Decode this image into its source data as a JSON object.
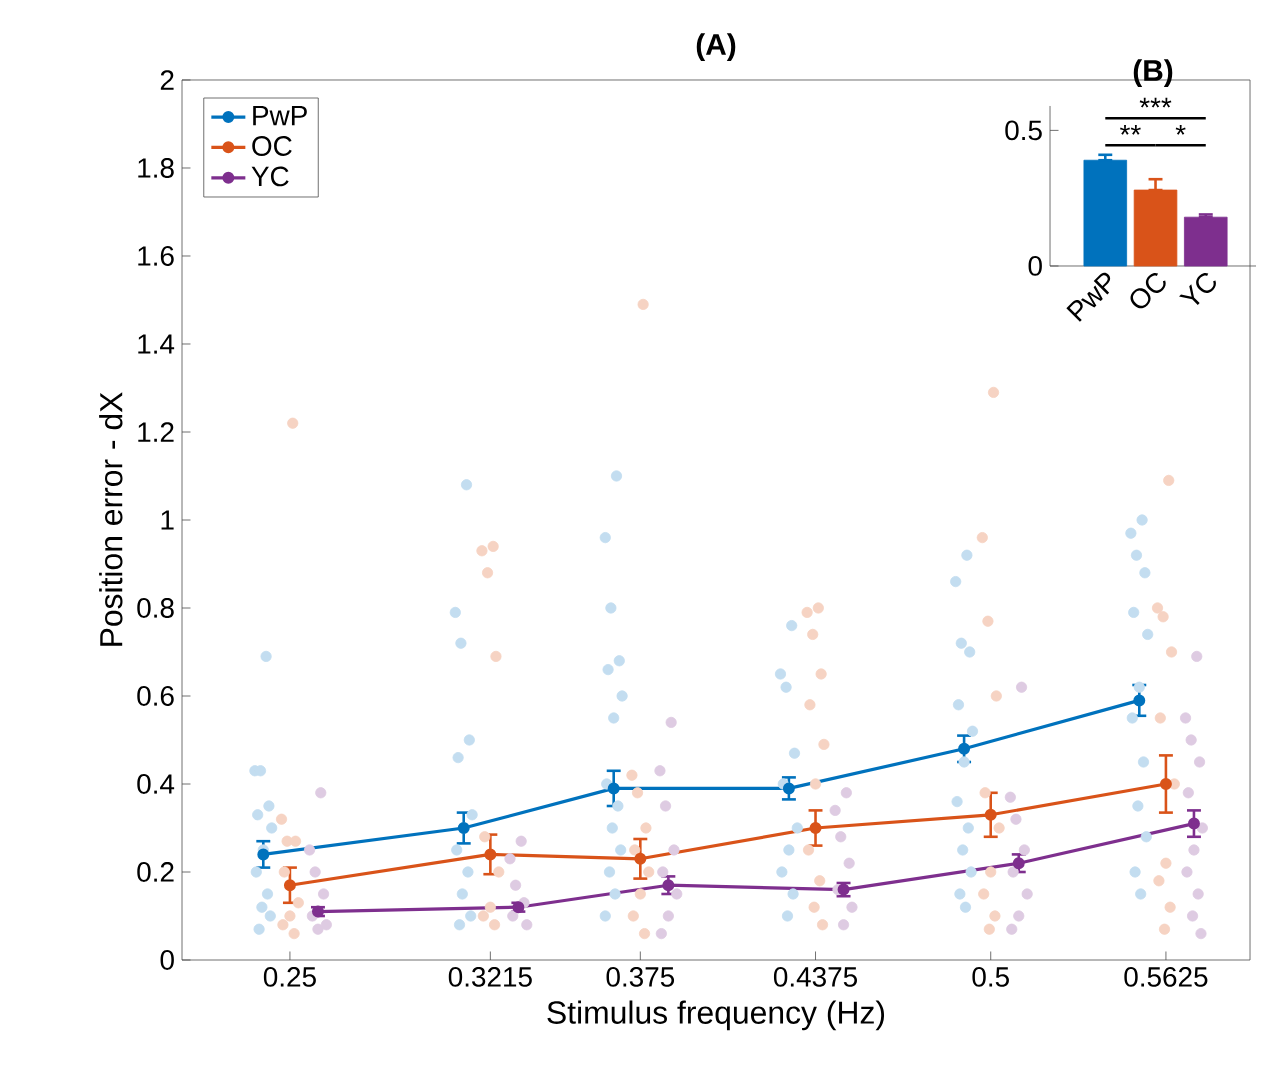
{
  "chart_data": [
    {
      "type": "line",
      "title": "(A)",
      "xlabel": "Stimulus frequency (Hz)",
      "ylabel": "Position error - dX",
      "xlim": [
        0.2115,
        0.5925
      ],
      "ylim": [
        0,
        2
      ],
      "xticks": [
        0.25,
        0.3215,
        0.375,
        0.4375,
        0.5,
        0.5625
      ],
      "yticks": [
        0,
        0.2,
        0.4,
        0.6,
        0.8,
        1,
        1.2,
        1.4,
        1.6,
        1.8,
        2
      ],
      "legend": "top left",
      "marker": "circle",
      "series": [
        {
          "type": "scatter",
          "color": "#c3ddf0",
          "x": [
            0.2415,
            0.2375,
            0.2395,
            0.2425,
            0.2385,
            0.2435,
            0.2405,
            0.238,
            0.242,
            0.24,
            0.243,
            0.239,
            0.313,
            0.309,
            0.311,
            0.314,
            0.31,
            0.315,
            0.312,
            0.3095,
            0.3135,
            0.3115,
            0.3145,
            0.3105,
            0.3665,
            0.3625,
            0.3645,
            0.3675,
            0.3635,
            0.3685,
            0.3655,
            0.363,
            0.367,
            0.365,
            0.368,
            0.364,
            0.366,
            0.3625,
            0.429,
            0.425,
            0.427,
            0.43,
            0.426,
            0.431,
            0.428,
            0.4255,
            0.4295,
            0.4275,
            0.4915,
            0.4875,
            0.4895,
            0.4925,
            0.4885,
            0.4935,
            0.4905,
            0.488,
            0.492,
            0.49,
            0.493,
            0.489,
            0.491,
            0.554,
            0.55,
            0.552,
            0.555,
            0.551,
            0.556,
            0.553,
            0.5505,
            0.5545,
            0.5525,
            0.5555,
            0.5515,
            0.5535
          ],
          "values": [
            0.69,
            0.43,
            0.43,
            0.35,
            0.33,
            0.3,
            0.25,
            0.2,
            0.15,
            0.12,
            0.1,
            0.07,
            1.08,
            0.79,
            0.72,
            0.5,
            0.46,
            0.33,
            0.3,
            0.25,
            0.2,
            0.15,
            0.1,
            0.08,
            1.1,
            0.96,
            0.8,
            0.68,
            0.66,
            0.6,
            0.55,
            0.4,
            0.35,
            0.3,
            0.25,
            0.2,
            0.15,
            0.1,
            0.76,
            0.65,
            0.62,
            0.47,
            0.4,
            0.3,
            0.25,
            0.2,
            0.15,
            0.1,
            0.92,
            0.86,
            0.72,
            0.7,
            0.58,
            0.52,
            0.45,
            0.36,
            0.3,
            0.25,
            0.2,
            0.15,
            0.12,
            1.0,
            0.97,
            0.92,
            0.88,
            0.79,
            0.74,
            0.62,
            0.55,
            0.45,
            0.35,
            0.28,
            0.2,
            0.15
          ]
        },
        {
          "type": "scatter",
          "color": "#f6d3c3",
          "x": [
            0.251,
            0.247,
            0.249,
            0.252,
            0.248,
            0.253,
            0.25,
            0.2475,
            0.2515,
            0.3225,
            0.3185,
            0.3205,
            0.3235,
            0.3195,
            0.3245,
            0.3215,
            0.319,
            0.323,
            0.376,
            0.372,
            0.374,
            0.377,
            0.373,
            0.378,
            0.375,
            0.3725,
            0.3765,
            0.4385,
            0.4345,
            0.4365,
            0.4395,
            0.4355,
            0.4405,
            0.4375,
            0.435,
            0.439,
            0.437,
            0.44,
            0.501,
            0.497,
            0.499,
            0.502,
            0.498,
            0.503,
            0.5,
            0.4975,
            0.5015,
            0.4995,
            0.5635,
            0.5595,
            0.5615,
            0.5645,
            0.5605,
            0.5655,
            0.5625,
            0.56,
            0.564,
            0.562
          ],
          "values": [
            1.22,
            0.32,
            0.27,
            0.27,
            0.2,
            0.13,
            0.1,
            0.08,
            0.06,
            0.94,
            0.93,
            0.88,
            0.69,
            0.28,
            0.2,
            0.12,
            0.1,
            0.08,
            1.49,
            0.42,
            0.38,
            0.3,
            0.25,
            0.2,
            0.15,
            0.1,
            0.06,
            0.8,
            0.79,
            0.74,
            0.65,
            0.58,
            0.49,
            0.4,
            0.25,
            0.18,
            0.12,
            0.08,
            1.29,
            0.96,
            0.77,
            0.6,
            0.38,
            0.3,
            0.2,
            0.15,
            0.1,
            0.07,
            1.09,
            0.8,
            0.78,
            0.7,
            0.55,
            0.4,
            0.22,
            0.18,
            0.12,
            0.07
          ]
        },
        {
          "type": "scatter",
          "color": "#decbe2",
          "x": [
            0.261,
            0.257,
            0.259,
            0.262,
            0.258,
            0.263,
            0.26,
            0.3325,
            0.3285,
            0.3305,
            0.3335,
            0.3295,
            0.3345,
            0.386,
            0.382,
            0.384,
            0.387,
            0.383,
            0.388,
            0.385,
            0.3825,
            0.4485,
            0.4445,
            0.4465,
            0.4495,
            0.4455,
            0.4505,
            0.4475,
            0.511,
            0.507,
            0.509,
            0.512,
            0.508,
            0.513,
            0.51,
            0.5075,
            0.5735,
            0.5695,
            0.5715,
            0.5745,
            0.5705,
            0.5755,
            0.5725,
            0.57,
            0.574,
            0.572,
            0.575
          ],
          "values": [
            0.38,
            0.25,
            0.2,
            0.15,
            0.1,
            0.08,
            0.07,
            0.27,
            0.23,
            0.17,
            0.13,
            0.1,
            0.08,
            0.54,
            0.43,
            0.35,
            0.25,
            0.2,
            0.15,
            0.1,
            0.06,
            0.38,
            0.34,
            0.28,
            0.22,
            0.16,
            0.12,
            0.08,
            0.62,
            0.37,
            0.32,
            0.25,
            0.2,
            0.15,
            0.1,
            0.07,
            0.69,
            0.55,
            0.5,
            0.45,
            0.38,
            0.3,
            0.25,
            0.2,
            0.15,
            0.1,
            0.06
          ]
        },
        {
          "name": "PwP",
          "color": "#0072bd",
          "x": [
            0.2405,
            0.312,
            0.3655,
            0.428,
            0.4905,
            0.553
          ],
          "values": [
            0.24,
            0.3,
            0.39,
            0.39,
            0.48,
            0.59
          ],
          "errors": [
            0.03,
            0.035,
            0.04,
            0.025,
            0.03,
            0.035
          ]
        },
        {
          "name": "OC",
          "color": "#d95319",
          "x": [
            0.25,
            0.3215,
            0.375,
            0.4375,
            0.5,
            0.5625
          ],
          "values": [
            0.17,
            0.24,
            0.23,
            0.3,
            0.33,
            0.4
          ],
          "errors": [
            0.04,
            0.045,
            0.045,
            0.04,
            0.05,
            0.065
          ]
        },
        {
          "name": "YC",
          "color": "#7e2f8e",
          "x": [
            0.26,
            0.3315,
            0.385,
            0.4475,
            0.51,
            0.5725
          ],
          "values": [
            0.11,
            0.12,
            0.17,
            0.16,
            0.22,
            0.31
          ],
          "errors": [
            0.01,
            0.01,
            0.02,
            0.015,
            0.02,
            0.03
          ]
        }
      ]
    },
    {
      "type": "bar",
      "title": "(B)",
      "categories": [
        "PwP",
        "OC",
        "YC"
      ],
      "values": [
        0.39,
        0.28,
        0.18
      ],
      "colors": [
        "#0072bd",
        "#d95319",
        "#7e2f8e"
      ],
      "errors": [
        [
          0.39,
          0.41
        ],
        [
          0.28,
          0.32
        ],
        [
          0.18,
          0.19
        ]
      ],
      "ylim": [
        0,
        0.59
      ],
      "yticks": [
        0,
        0.5
      ],
      "annotations": [
        "***",
        "**",
        "*"
      ]
    }
  ]
}
